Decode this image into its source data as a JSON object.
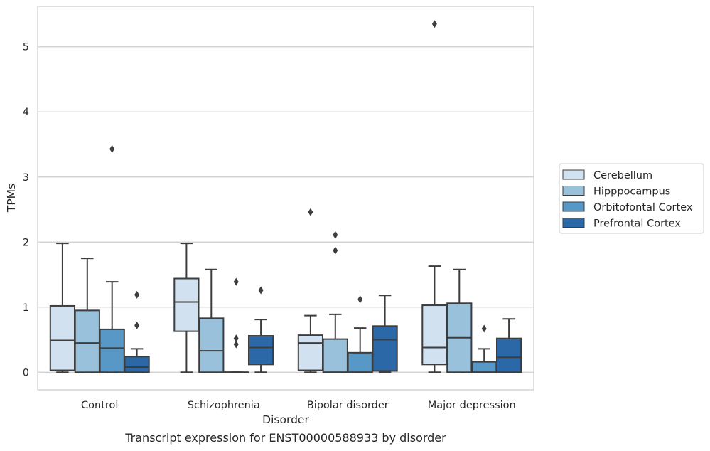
{
  "chart_data": {
    "type": "boxplot",
    "xlabel": "Disorder",
    "ylabel": "TPMs",
    "caption": "Transcript expression for ENST00000588933 by disorder",
    "ylim": [
      -0.27,
      5.62
    ],
    "yticks": [
      0,
      1,
      2,
      3,
      4,
      5
    ],
    "grid": "horizontal",
    "legend_position": "right",
    "categories": [
      "Control",
      "Schizophrenia",
      "Bipolar disorder",
      "Major depression"
    ],
    "series": [
      {
        "name": "Cerebellum",
        "color": "#d1e1f0",
        "boxes": [
          {
            "whislo": 0.0,
            "q1": 0.03,
            "med": 0.49,
            "q3": 1.02,
            "whishi": 1.98,
            "fliers": []
          },
          {
            "whislo": 0.0,
            "q1": 0.63,
            "med": 1.08,
            "q3": 1.44,
            "whishi": 1.98,
            "fliers": []
          },
          {
            "whislo": 0.0,
            "q1": 0.03,
            "med": 0.45,
            "q3": 0.57,
            "whishi": 0.87,
            "fliers": [
              2.46
            ]
          },
          {
            "whislo": 0.0,
            "q1": 0.12,
            "med": 0.38,
            "q3": 1.03,
            "whishi": 1.63,
            "fliers": [
              5.35
            ]
          }
        ]
      },
      {
        "name": "Hipppocampus",
        "color": "#9ac1db",
        "boxes": [
          {
            "whislo": 0.0,
            "q1": 0.0,
            "med": 0.45,
            "q3": 0.95,
            "whishi": 1.75,
            "fliers": []
          },
          {
            "whislo": 0.0,
            "q1": 0.0,
            "med": 0.33,
            "q3": 0.83,
            "whishi": 1.58,
            "fliers": []
          },
          {
            "whislo": 0.0,
            "q1": 0.0,
            "med": 0.0,
            "q3": 0.51,
            "whishi": 0.89,
            "fliers": [
              1.87,
              2.11
            ]
          },
          {
            "whislo": 0.0,
            "q1": 0.0,
            "med": 0.53,
            "q3": 1.06,
            "whishi": 1.58,
            "fliers": []
          }
        ]
      },
      {
        "name": "Orbitofontal Cortex",
        "color": "#5798c7",
        "boxes": [
          {
            "whislo": 0.0,
            "q1": 0.0,
            "med": 0.37,
            "q3": 0.66,
            "whishi": 1.39,
            "fliers": [
              3.43
            ]
          },
          {
            "whislo": 0.0,
            "q1": 0.0,
            "med": 0.0,
            "q3": 0.0,
            "whishi": 0.0,
            "fliers": [
              0.43,
              0.52,
              1.39
            ]
          },
          {
            "whislo": 0.0,
            "q1": 0.0,
            "med": 0.0,
            "q3": 0.3,
            "whishi": 0.68,
            "fliers": [
              1.12
            ]
          },
          {
            "whislo": 0.0,
            "q1": 0.0,
            "med": 0.0,
            "q3": 0.16,
            "whishi": 0.36,
            "fliers": [
              0.67
            ]
          }
        ]
      },
      {
        "name": "Prefrontal Cortex",
        "color": "#2a68a8",
        "boxes": [
          {
            "whislo": 0.0,
            "q1": 0.0,
            "med": 0.08,
            "q3": 0.24,
            "whishi": 0.36,
            "fliers": [
              0.72,
              1.19
            ]
          },
          {
            "whislo": 0.0,
            "q1": 0.12,
            "med": 0.38,
            "q3": 0.56,
            "whishi": 0.81,
            "fliers": [
              1.26
            ]
          },
          {
            "whislo": 0.0,
            "q1": 0.02,
            "med": 0.5,
            "q3": 0.71,
            "whishi": 1.18,
            "fliers": []
          },
          {
            "whislo": 0.0,
            "q1": 0.0,
            "med": 0.23,
            "q3": 0.52,
            "whishi": 0.82,
            "fliers": []
          }
        ]
      }
    ]
  }
}
